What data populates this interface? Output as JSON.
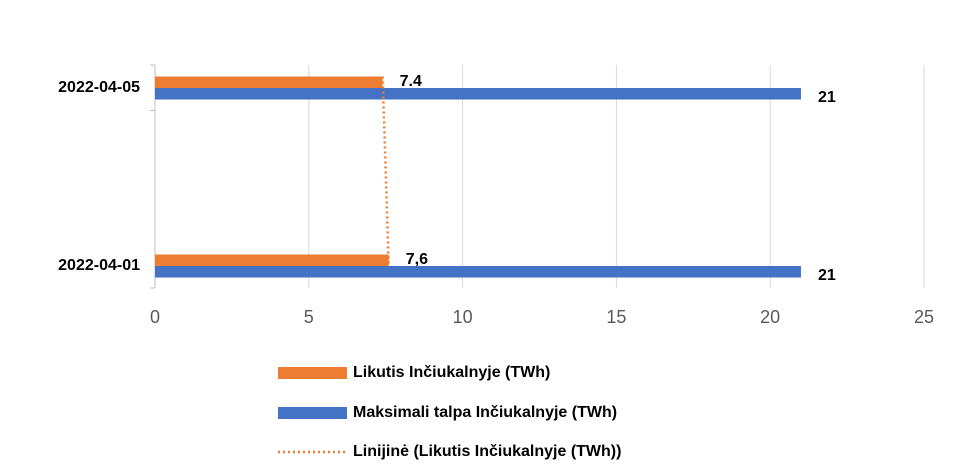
{
  "chart_data": {
    "type": "hbar",
    "categories": [
      "2022-04-05",
      "2022-04-01"
    ],
    "series": [
      {
        "name": "Likutis Inčiukalnyje (TWh)",
        "color": "#ed7d31",
        "values": [
          7.4,
          7.6
        ],
        "value_labels": [
          "7.4",
          "7,6"
        ]
      },
      {
        "name": "Maksimali talpa Inčiukalnyje (TWh)",
        "color": "#4472c4",
        "values": [
          21,
          21
        ]
      }
    ],
    "trendline": {
      "name": "Linijinė (Likutis Inčiukalnyje (TWh))",
      "color": "#ed7d31",
      "values": [
        7.4,
        7.6
      ]
    },
    "xlim": [
      0,
      25
    ],
    "xticks": [
      0,
      5,
      10,
      15,
      20,
      25
    ],
    "grid": true,
    "legend": "bottom"
  }
}
